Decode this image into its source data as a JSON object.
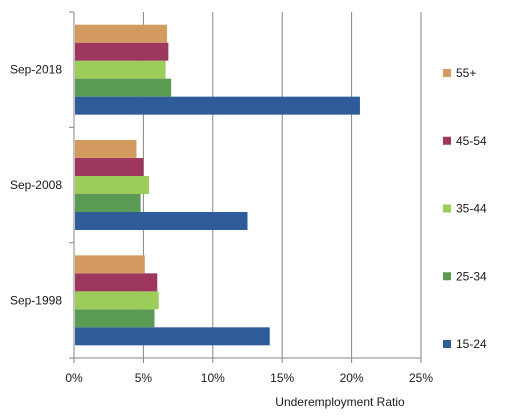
{
  "chart_data": {
    "type": "bar",
    "orientation": "horizontal",
    "title": "",
    "xlabel": "Underemployment Ratio",
    "ylabel": "",
    "xlim": [
      0,
      0.25
    ],
    "x_ticks": [
      "0%",
      "5%",
      "10%",
      "15%",
      "20%",
      "25%"
    ],
    "grid": "vertical major gridlines",
    "legend_position": "right",
    "categories": [
      "Sep-1998",
      "Sep-2008",
      "Sep-2018"
    ],
    "series": [
      {
        "name": "15-24",
        "color": "#2e5b9a",
        "values": [
          0.141,
          0.125,
          0.206
        ]
      },
      {
        "name": "25-34",
        "color": "#5a9a55",
        "values": [
          0.058,
          0.048,
          0.07
        ]
      },
      {
        "name": "35-44",
        "color": "#9ccc5a",
        "values": [
          0.061,
          0.054,
          0.066
        ]
      },
      {
        "name": "45-54",
        "color": "#9e3760",
        "values": [
          0.06,
          0.05,
          0.068
        ]
      },
      {
        "name": "55+",
        "color": "#d39b60",
        "values": [
          0.051,
          0.045,
          0.067
        ]
      }
    ]
  },
  "colors": {
    "axis": "#868686",
    "grid": "#868686"
  }
}
